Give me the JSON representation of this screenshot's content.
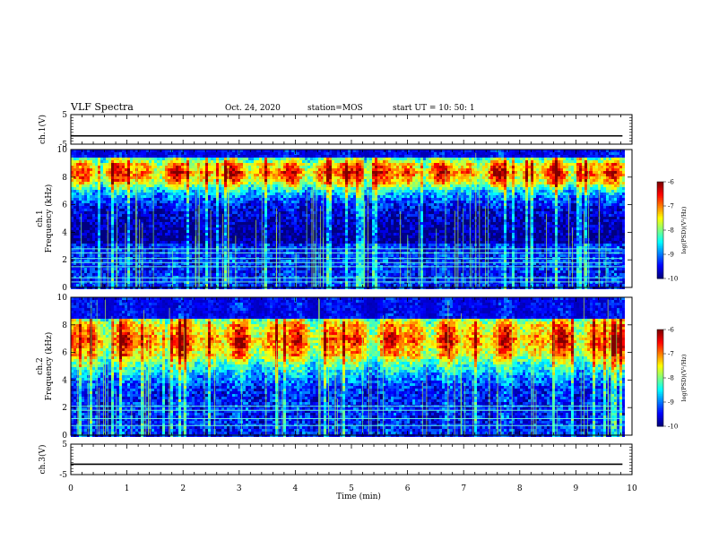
{
  "header": {
    "title": "VLF Spectra",
    "date": "Oct. 24, 2020",
    "station": "station=MOS",
    "start": "start  UT  =   10: 50: 1"
  },
  "chart_data": [
    {
      "type": "line",
      "panel": "ch1-waveform",
      "ylabel": "ch.1(V)",
      "ylim": [
        -5,
        5
      ],
      "yticks": [
        "5",
        "-5"
      ],
      "xlim": [
        0,
        10
      ],
      "series": [
        {
          "x": [
            0,
            9.83
          ],
          "values": [
            -2.2,
            -2.2
          ]
        }
      ]
    },
    {
      "type": "heatmap",
      "panel": "ch1-spectrogram",
      "ylabel": "ch.1",
      "ylabel2": "Frequency (kHz)",
      "ylim": [
        0,
        10
      ],
      "yticks": [
        "0",
        "2",
        "4",
        "6",
        "8",
        "10"
      ],
      "xlim": [
        0,
        10
      ],
      "data_end_min": 9.83,
      "intense_band_khz": [
        7.8,
        9.0
      ],
      "lines_khz": [
        0.4,
        0.7,
        1.5,
        1.8,
        2.1,
        2.5,
        2.8
      ],
      "colorbar": {
        "ticks": [
          "-6",
          "-7",
          "-8",
          "-9",
          "-10"
        ],
        "label": "log(PSD)(V²/Hz)"
      }
    },
    {
      "type": "heatmap",
      "panel": "ch2-spectrogram",
      "ylabel": "ch.2",
      "ylabel2": "Frequency (kHz)",
      "ylim": [
        0,
        10
      ],
      "yticks": [
        "0",
        "2",
        "4",
        "6",
        "8",
        "10"
      ],
      "xlim": [
        0,
        10
      ],
      "data_end_min": 9.83,
      "intense_band_khz": [
        6.0,
        8.0
      ],
      "lines_khz": [
        0.7,
        1.2,
        1.8,
        2.1
      ],
      "colorbar": {
        "ticks": [
          "-6",
          "-7",
          "-8",
          "-9",
          "-10"
        ],
        "label": "log(PSD)(V²/Hz)"
      }
    },
    {
      "type": "line",
      "panel": "ch3-waveform",
      "ylabel": "ch.3(V)",
      "ylim": [
        -5,
        5
      ],
      "yticks": [
        "5",
        "-5"
      ],
      "xlim": [
        0,
        10
      ],
      "xlabel": "Time (min)",
      "xticks": [
        "0",
        "1",
        "2",
        "3",
        "4",
        "5",
        "6",
        "7",
        "8",
        "9",
        "10"
      ],
      "series": [
        {
          "x": [
            0,
            9.83
          ],
          "values": [
            -1.6,
            -1.6
          ]
        }
      ]
    }
  ]
}
